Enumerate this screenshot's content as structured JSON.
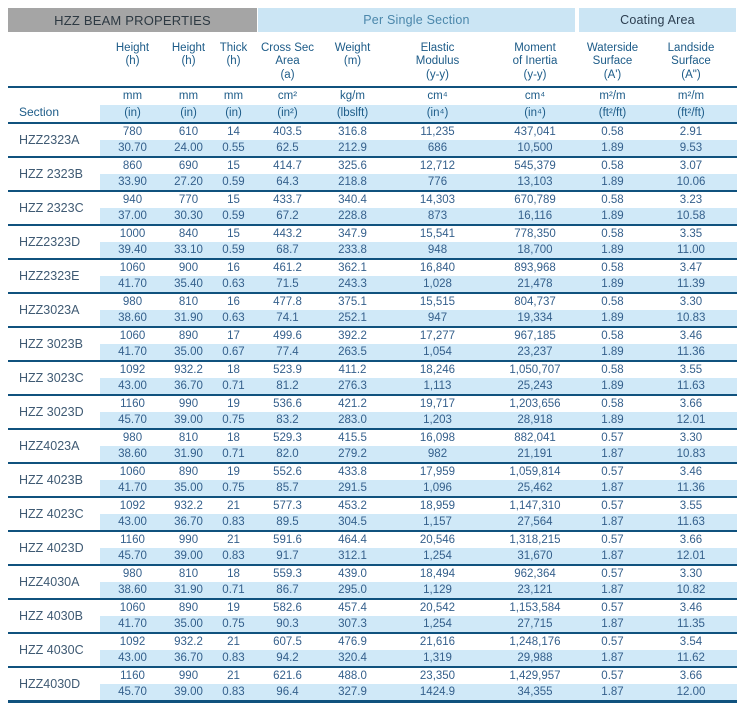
{
  "bands": {
    "left": "HZZ BEAM PROPERTIES",
    "middle": "Per Single Section",
    "right": "Coating Area"
  },
  "section_header": "Section",
  "columns": [
    {
      "title": "Height\n(h)",
      "unit_metric": "mm",
      "unit_imperial": "(in)"
    },
    {
      "title": "Height\n(h)",
      "unit_metric": "mm",
      "unit_imperial": "(in)"
    },
    {
      "title": "Thick\n(h)",
      "unit_metric": "mm",
      "unit_imperial": "(in)"
    },
    {
      "title": "Cross Sec\nArea\n(a)",
      "unit_metric": "cm²",
      "unit_imperial": "(in²)"
    },
    {
      "title": "Weight\n(m)",
      "unit_metric": "kg/m",
      "unit_imperial": "(lbslft)"
    },
    {
      "title": "Elastic\nModulus\n(y-y)",
      "unit_metric": "cm⁴",
      "unit_imperial": "(in⁴)"
    },
    {
      "title": "Moment\nof Inertia\n(y-y)",
      "unit_metric": "cm⁴",
      "unit_imperial": "(in⁴)"
    },
    {
      "title": "Waterside\nSurface\n(A')",
      "unit_metric": "m²/m",
      "unit_imperial": "(ft²/ft)"
    },
    {
      "title": "Landside\nSurface\n(A\")",
      "unit_metric": "m²/m",
      "unit_imperial": "(ft²/ft)"
    }
  ],
  "rows": [
    {
      "section": "HZZ2323A",
      "metric": [
        "780",
        "610",
        "14",
        "403.5",
        "316.8",
        "11,235",
        "437,041",
        "0.58",
        "2.91"
      ],
      "imperial": [
        "30.70",
        "24.00",
        "0.55",
        "62.5",
        "212.9",
        "686",
        "10,500",
        "1.89",
        "9.53"
      ]
    },
    {
      "section": "HZZ 2323B",
      "metric": [
        "860",
        "690",
        "15",
        "414.7",
        "325.6",
        "12,712",
        "545,379",
        "0.58",
        "3.07"
      ],
      "imperial": [
        "33.90",
        "27.20",
        "0.59",
        "64.3",
        "218.8",
        "776",
        "13,103",
        "1.89",
        "10.06"
      ]
    },
    {
      "section": "HZZ 2323C",
      "metric": [
        "940",
        "770",
        "15",
        "433.7",
        "340.4",
        "14,303",
        "670,789",
        "0.58",
        "3.23"
      ],
      "imperial": [
        "37.00",
        "30.30",
        "0.59",
        "67.2",
        "228.8",
        "873",
        "16,116",
        "1.89",
        "10.58"
      ]
    },
    {
      "section": "HZZ2323D",
      "metric": [
        "1000",
        "840",
        "15",
        "443.2",
        "347.9",
        "15,541",
        "778,350",
        "0.58",
        "3.35"
      ],
      "imperial": [
        "39.40",
        "33.10",
        "0.59",
        "68.7",
        "233.8",
        "948",
        "18,700",
        "1.89",
        "11.00"
      ]
    },
    {
      "section": "HZZ2323E",
      "metric": [
        "1060",
        "900",
        "16",
        "461.2",
        "362.1",
        "16,840",
        "893,968",
        "0.58",
        "3.47"
      ],
      "imperial": [
        "41.70",
        "35.40",
        "0.63",
        "71.5",
        "243.3",
        "1,028",
        "21,478",
        "1.89",
        "11.39"
      ]
    },
    {
      "section": "HZZ3023A",
      "metric": [
        "980",
        "810",
        "16",
        "477.8",
        "375.1",
        "15,515",
        "804,737",
        "0.58",
        "3.30"
      ],
      "imperial": [
        "38.60",
        "31.90",
        "0.63",
        "74.1",
        "252.1",
        "947",
        "19,334",
        "1.89",
        "10.83"
      ]
    },
    {
      "section": "HZZ 3023B",
      "metric": [
        "1060",
        "890",
        "17",
        "499.6",
        "392.2",
        "17,277",
        "967,185",
        "0.58",
        "3.46"
      ],
      "imperial": [
        "41.70",
        "35.00",
        "0.67",
        "77.4",
        "263.5",
        "1,054",
        "23,237",
        "1.89",
        "11.36"
      ]
    },
    {
      "section": "HZZ 3023C",
      "metric": [
        "1092",
        "932.2",
        "18",
        "523.9",
        "411.2",
        "18,246",
        "1,050,707",
        "0.58",
        "3.55"
      ],
      "imperial": [
        "43.00",
        "36.70",
        "0.71",
        "81.2",
        "276.3",
        "1,113",
        "25,243",
        "1.89",
        "11.63"
      ]
    },
    {
      "section": "HZZ 3023D",
      "metric": [
        "1160",
        "990",
        "19",
        "536.6",
        "421.2",
        "19,717",
        "1,203,656",
        "0.58",
        "3.66"
      ],
      "imperial": [
        "45.70",
        "39.00",
        "0.75",
        "83.2",
        "283.0",
        "1,203",
        "28,918",
        "1.89",
        "12.01"
      ]
    },
    {
      "section": "HZZ4023A",
      "metric": [
        "980",
        "810",
        "18",
        "529.3",
        "415.5",
        "16,098",
        "882,041",
        "0.57",
        "3.30"
      ],
      "imperial": [
        "38.60",
        "31.90",
        "0.71",
        "82.0",
        "279.2",
        "982",
        "21,191",
        "1.87",
        "10.83"
      ]
    },
    {
      "section": "HZZ 4023B",
      "metric": [
        "1060",
        "890",
        "19",
        "552.6",
        "433.8",
        "17,959",
        "1,059,814",
        "0.57",
        "3.46"
      ],
      "imperial": [
        "41.70",
        "35.00",
        "0.75",
        "85.7",
        "291.5",
        "1,096",
        "25,462",
        "1.87",
        "11.36"
      ]
    },
    {
      "section": "HZZ 4023C",
      "metric": [
        "1092",
        "932.2",
        "21",
        "577.3",
        "453.2",
        "18,959",
        "1,147,310",
        "0.57",
        "3.55"
      ],
      "imperial": [
        "43.00",
        "36.70",
        "0.83",
        "89.5",
        "304.5",
        "1,157",
        "27,564",
        "1.87",
        "11.63"
      ]
    },
    {
      "section": "HZZ 4023D",
      "metric": [
        "1160",
        "990",
        "21",
        "591.6",
        "464.4",
        "20,546",
        "1,318,215",
        "0.57",
        "3.66"
      ],
      "imperial": [
        "45.70",
        "39.00",
        "0.83",
        "91.7",
        "312.1",
        "1,254",
        "31,670",
        "1.87",
        "12.01"
      ]
    },
    {
      "section": "HZZ4030A",
      "metric": [
        "980",
        "810",
        "18",
        "559.3",
        "439.0",
        "18,494",
        "962,364",
        "0.57",
        "3.30"
      ],
      "imperial": [
        "38.60",
        "31.90",
        "0.71",
        "86.7",
        "295.0",
        "1,129",
        "23,121",
        "1.87",
        "10.82"
      ]
    },
    {
      "section": "HZZ 4030B",
      "metric": [
        "1060",
        "890",
        "19",
        "582.6",
        "457.4",
        "20,542",
        "1,153,584",
        "0.57",
        "3.46"
      ],
      "imperial": [
        "41.70",
        "35.00",
        "0.75",
        "90.3",
        "307.3",
        "1,254",
        "27,715",
        "1.87",
        "11.35"
      ]
    },
    {
      "section": "HZZ 4030C",
      "metric": [
        "1092",
        "932.2",
        "21",
        "607.5",
        "476.9",
        "21,616",
        "1,248,176",
        "0.57",
        "3.54"
      ],
      "imperial": [
        "43.00",
        "36.70",
        "0.83",
        "94.2",
        "320.4",
        "1,319",
        "29,988",
        "1.87",
        "11.62"
      ]
    },
    {
      "section": "HZZ4030D",
      "metric": [
        "1160",
        "990",
        "21",
        "621.6",
        "488.0",
        "23,350",
        "1,429,957",
        "0.57",
        "3.66"
      ],
      "imperial": [
        "45.70",
        "39.00",
        "0.83",
        "96.4",
        "327.9",
        "1424.9",
        "34,355",
        "1.87",
        "12.00"
      ]
    }
  ],
  "colors": {
    "band_gray": "#a5a5a5",
    "band_blue": "#cbe5f4",
    "row_blue": "#d0e9f8",
    "rule_navy": "#10527e",
    "header_text": "#1c5b88",
    "data_text": "#35608c"
  }
}
